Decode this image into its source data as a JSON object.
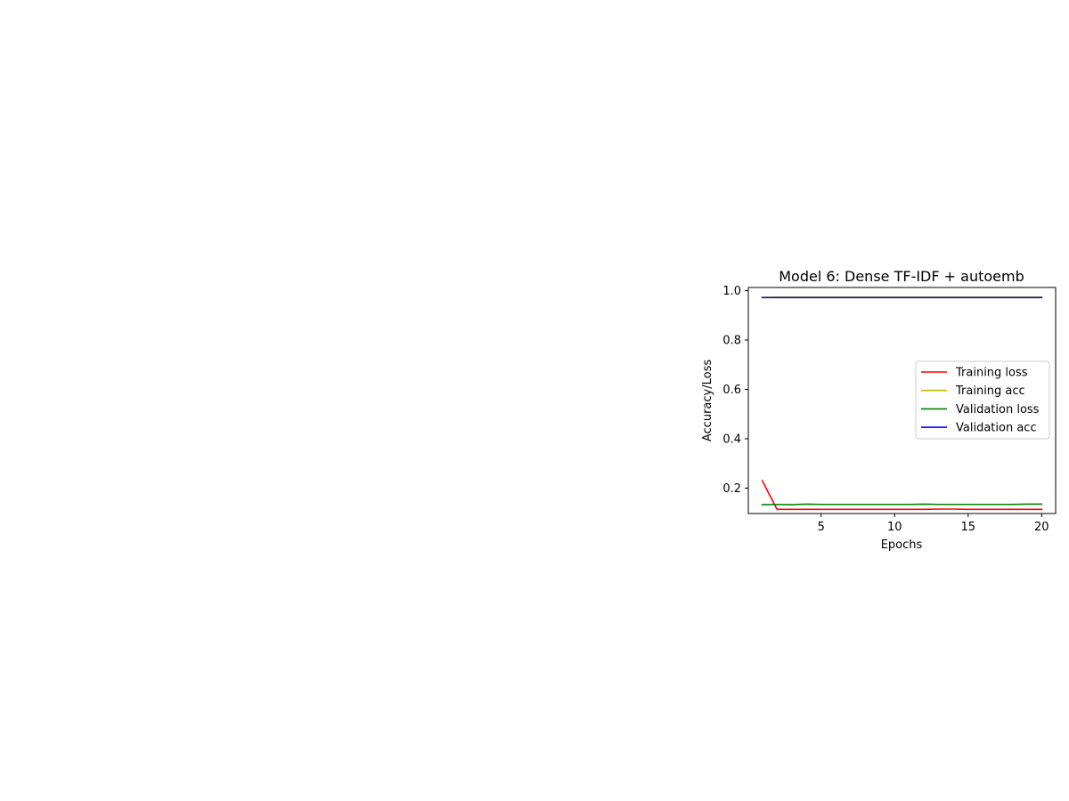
{
  "chart_data": {
    "type": "line",
    "title": "Model 6: Dense TF-IDF + autoemb",
    "xlabel": "Epochs",
    "ylabel": "Accuracy/Loss",
    "x": [
      1,
      2,
      3,
      4,
      5,
      6,
      7,
      8,
      9,
      10,
      11,
      12,
      13,
      14,
      15,
      16,
      17,
      18,
      19,
      20
    ],
    "xlim": [
      0.05,
      20.95
    ],
    "ylim": [
      0.097,
      1.013
    ],
    "xticks": [
      5,
      10,
      15,
      20
    ],
    "yticks": [
      0.2,
      0.4,
      0.6,
      0.8,
      1.0
    ],
    "xtick_labels": [
      "5",
      "10",
      "15",
      "20"
    ],
    "ytick_labels": [
      "0.2",
      "0.4",
      "0.6",
      "0.8",
      "1.0"
    ],
    "grid": false,
    "legend_position": "center-right",
    "series": [
      {
        "name": "Training loss",
        "color": "#ff0000",
        "values": [
          0.23,
          0.114,
          0.114,
          0.114,
          0.114,
          0.114,
          0.114,
          0.114,
          0.114,
          0.114,
          0.114,
          0.114,
          0.115,
          0.115,
          0.114,
          0.114,
          0.114,
          0.114,
          0.114,
          0.114
        ]
      },
      {
        "name": "Training acc",
        "color": "#bfbf00",
        "values": [
          0.973,
          0.974,
          0.974,
          0.974,
          0.974,
          0.974,
          0.974,
          0.974,
          0.974,
          0.974,
          0.974,
          0.974,
          0.974,
          0.974,
          0.974,
          0.974,
          0.974,
          0.974,
          0.974,
          0.974
        ]
      },
      {
        "name": "Validation loss",
        "color": "#008000",
        "values": [
          0.133,
          0.134,
          0.133,
          0.135,
          0.134,
          0.134,
          0.134,
          0.134,
          0.134,
          0.134,
          0.134,
          0.135,
          0.134,
          0.134,
          0.134,
          0.134,
          0.134,
          0.134,
          0.135,
          0.135
        ]
      },
      {
        "name": "Validation acc",
        "color": "#0000ff",
        "values": [
          0.972,
          0.972,
          0.972,
          0.972,
          0.972,
          0.972,
          0.972,
          0.972,
          0.972,
          0.972,
          0.972,
          0.972,
          0.972,
          0.972,
          0.972,
          0.972,
          0.972,
          0.972,
          0.972,
          0.972
        ]
      }
    ]
  }
}
